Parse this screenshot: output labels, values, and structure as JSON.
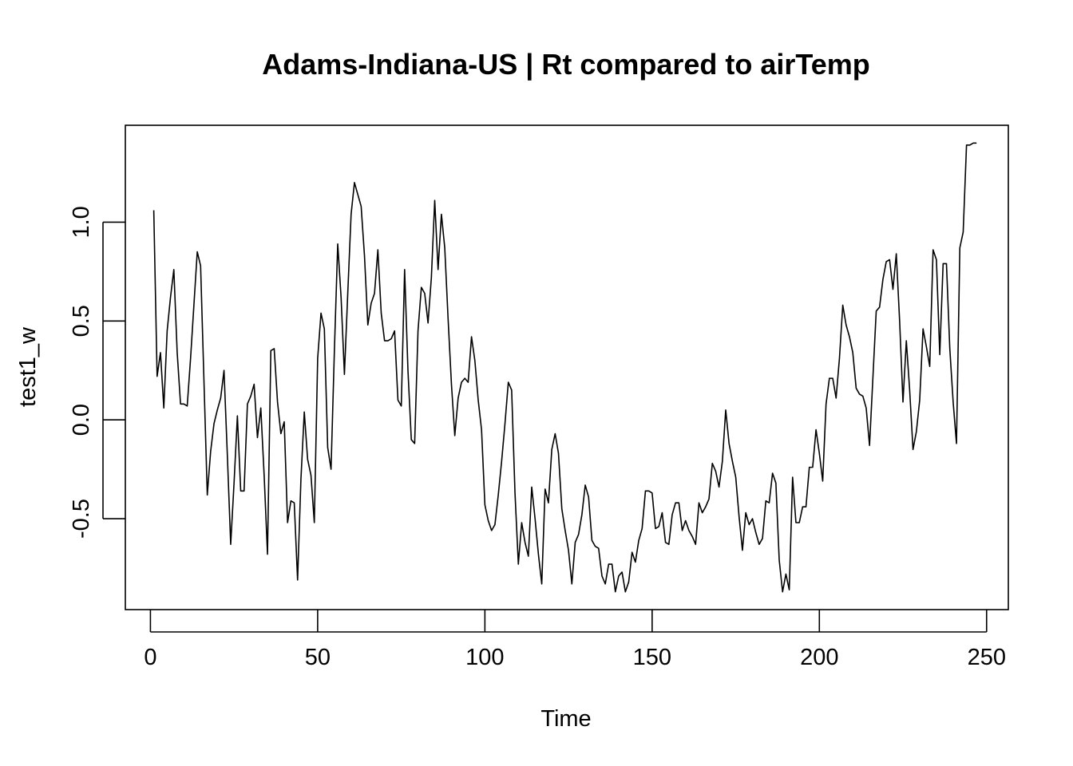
{
  "chart_data": {
    "type": "line",
    "title": "Adams-Indiana-US | Rt compared to airTemp",
    "xlabel": "Time",
    "ylabel": "test1_w",
    "xlim": [
      -7.5,
      256.5
    ],
    "ylim": [
      -0.96,
      1.49
    ],
    "x_ticks": [
      0,
      50,
      100,
      150,
      200,
      250
    ],
    "x_tick_labels": [
      "0",
      "50",
      "100",
      "150",
      "200",
      "250"
    ],
    "y_ticks": [
      -0.5,
      0.0,
      0.5,
      1.0
    ],
    "y_tick_labels": [
      "-0.5",
      "0.0",
      "0.5",
      "1.0"
    ],
    "grid": false,
    "legend": "none",
    "line_color": "#000000",
    "series": [
      {
        "x_start": 1,
        "x_step": 1,
        "values": [
          1.06,
          0.22,
          0.34,
          0.06,
          0.45,
          0.62,
          0.76,
          0.34,
          0.08,
          0.08,
          0.07,
          0.31,
          0.58,
          0.85,
          0.78,
          0.2,
          -0.38,
          -0.16,
          -0.02,
          0.05,
          0.11,
          0.25,
          -0.18,
          -0.63,
          -0.32,
          0.02,
          -0.36,
          -0.36,
          0.08,
          0.12,
          0.18,
          -0.09,
          0.06,
          -0.28,
          -0.68,
          0.35,
          0.36,
          0.09,
          -0.07,
          -0.01,
          -0.52,
          -0.41,
          -0.42,
          -0.81,
          -0.3,
          0.04,
          -0.2,
          -0.28,
          -0.52,
          0.31,
          0.54,
          0.46,
          -0.14,
          -0.25,
          0.35,
          0.89,
          0.62,
          0.23,
          0.64,
          1.04,
          1.2,
          1.14,
          1.08,
          0.83,
          0.48,
          0.59,
          0.64,
          0.86,
          0.54,
          0.4,
          0.4,
          0.41,
          0.45,
          0.1,
          0.07,
          0.76,
          0.25,
          -0.1,
          -0.12,
          0.45,
          0.67,
          0.64,
          0.49,
          0.72,
          1.11,
          0.76,
          1.04,
          0.87,
          0.51,
          0.18,
          -0.08,
          0.11,
          0.19,
          0.21,
          0.19,
          0.42,
          0.3,
          0.1,
          -0.05,
          -0.43,
          -0.51,
          -0.56,
          -0.53,
          -0.38,
          -0.21,
          -0.02,
          0.19,
          0.15,
          -0.37,
          -0.73,
          -0.52,
          -0.62,
          -0.69,
          -0.34,
          -0.5,
          -0.68,
          -0.83,
          -0.35,
          -0.42,
          -0.15,
          -0.07,
          -0.17,
          -0.45,
          -0.56,
          -0.66,
          -0.83,
          -0.62,
          -0.58,
          -0.48,
          -0.33,
          -0.39,
          -0.61,
          -0.64,
          -0.65,
          -0.79,
          -0.83,
          -0.73,
          -0.73,
          -0.87,
          -0.79,
          -0.77,
          -0.87,
          -0.82,
          -0.67,
          -0.72,
          -0.61,
          -0.55,
          -0.36,
          -0.36,
          -0.37,
          -0.55,
          -0.54,
          -0.47,
          -0.62,
          -0.63,
          -0.48,
          -0.42,
          -0.42,
          -0.56,
          -0.51,
          -0.56,
          -0.59,
          -0.63,
          -0.42,
          -0.47,
          -0.44,
          -0.4,
          -0.22,
          -0.26,
          -0.34,
          -0.21,
          0.05,
          -0.12,
          -0.21,
          -0.29,
          -0.49,
          -0.66,
          -0.47,
          -0.53,
          -0.5,
          -0.57,
          -0.63,
          -0.6,
          -0.41,
          -0.42,
          -0.27,
          -0.32,
          -0.71,
          -0.87,
          -0.78,
          -0.86,
          -0.29,
          -0.52,
          -0.52,
          -0.44,
          -0.44,
          -0.24,
          -0.24,
          -0.05,
          -0.17,
          -0.31,
          0.08,
          0.21,
          0.21,
          0.11,
          0.31,
          0.58,
          0.48,
          0.42,
          0.34,
          0.16,
          0.13,
          0.12,
          0.06,
          -0.13,
          0.21,
          0.55,
          0.57,
          0.71,
          0.8,
          0.81,
          0.66,
          0.84,
          0.5,
          0.09,
          0.4,
          0.15,
          -0.15,
          -0.06,
          0.1,
          0.46,
          0.37,
          0.27,
          0.86,
          0.81,
          0.33,
          0.79,
          0.79,
          0.36,
          0.09,
          -0.12,
          0.87,
          0.95,
          1.39,
          1.39,
          1.4,
          1.4
        ]
      }
    ]
  }
}
